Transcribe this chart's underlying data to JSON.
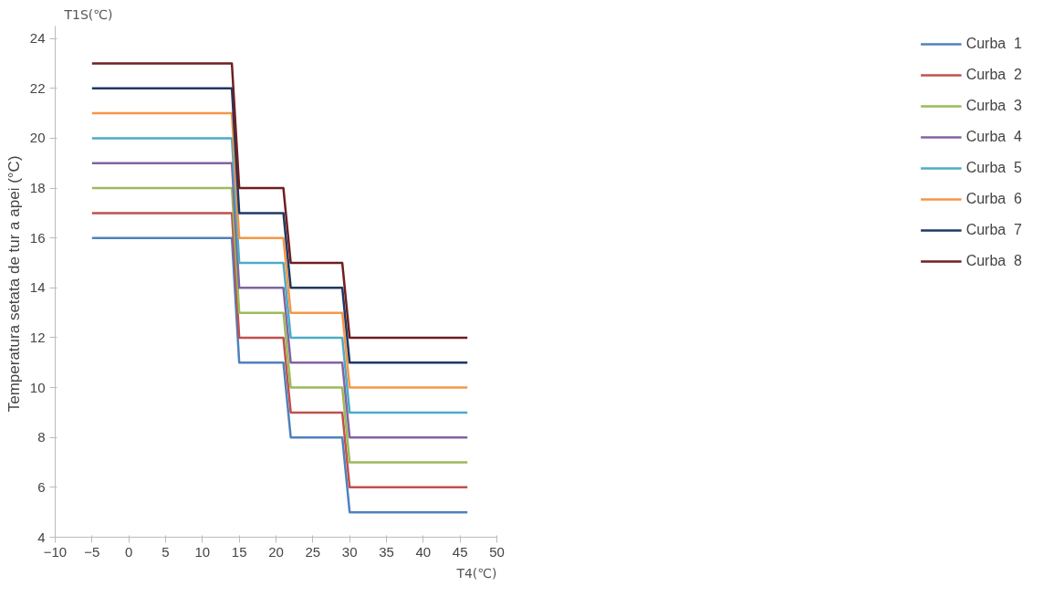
{
  "chart_data": {
    "type": "line",
    "xlabel": "T4(℃)",
    "ylabel": "Temperatura setata de tur a apei  (°C)",
    "annotations": [
      "T1S(℃)"
    ],
    "x": [
      -5,
      14,
      15,
      21,
      22,
      29,
      30,
      46
    ],
    "series": [
      {
        "name": "Curba  1",
        "color": "#4f81bd",
        "values": [
          16,
          16,
          11,
          11,
          8,
          8,
          5,
          5
        ]
      },
      {
        "name": "Curba  2",
        "color": "#c0504d",
        "values": [
          17,
          17,
          12,
          12,
          9,
          9,
          6,
          6
        ]
      },
      {
        "name": "Curba  3",
        "color": "#9bbb59",
        "values": [
          18,
          18,
          13,
          13,
          10,
          10,
          7,
          7
        ]
      },
      {
        "name": "Curba  4",
        "color": "#8064a2",
        "values": [
          19,
          19,
          14,
          14,
          11,
          11,
          8,
          8
        ]
      },
      {
        "name": "Curba  5",
        "color": "#4bacc6",
        "values": [
          20,
          20,
          15,
          15,
          12,
          12,
          9,
          9
        ]
      },
      {
        "name": "Curba  6",
        "color": "#f79646",
        "values": [
          21,
          21,
          16,
          16,
          13,
          13,
          10,
          10
        ]
      },
      {
        "name": "Curba  7",
        "color": "#1f3864",
        "values": [
          22,
          22,
          17,
          17,
          14,
          14,
          11,
          11
        ]
      },
      {
        "name": "Curba  8",
        "color": "#6e1f22",
        "values": [
          23,
          23,
          18,
          18,
          15,
          15,
          12,
          12
        ]
      }
    ],
    "xlim": [
      -10,
      50
    ],
    "ylim": [
      4,
      24.5
    ],
    "xticks": [
      -10,
      -5,
      0,
      5,
      10,
      15,
      20,
      25,
      30,
      35,
      40,
      45,
      50
    ],
    "yticks": [
      4,
      6,
      8,
      10,
      12,
      14,
      16,
      18,
      20,
      22,
      24
    ],
    "grid": false,
    "legend": "right",
    "line_style": "solid",
    "marker": "none"
  }
}
